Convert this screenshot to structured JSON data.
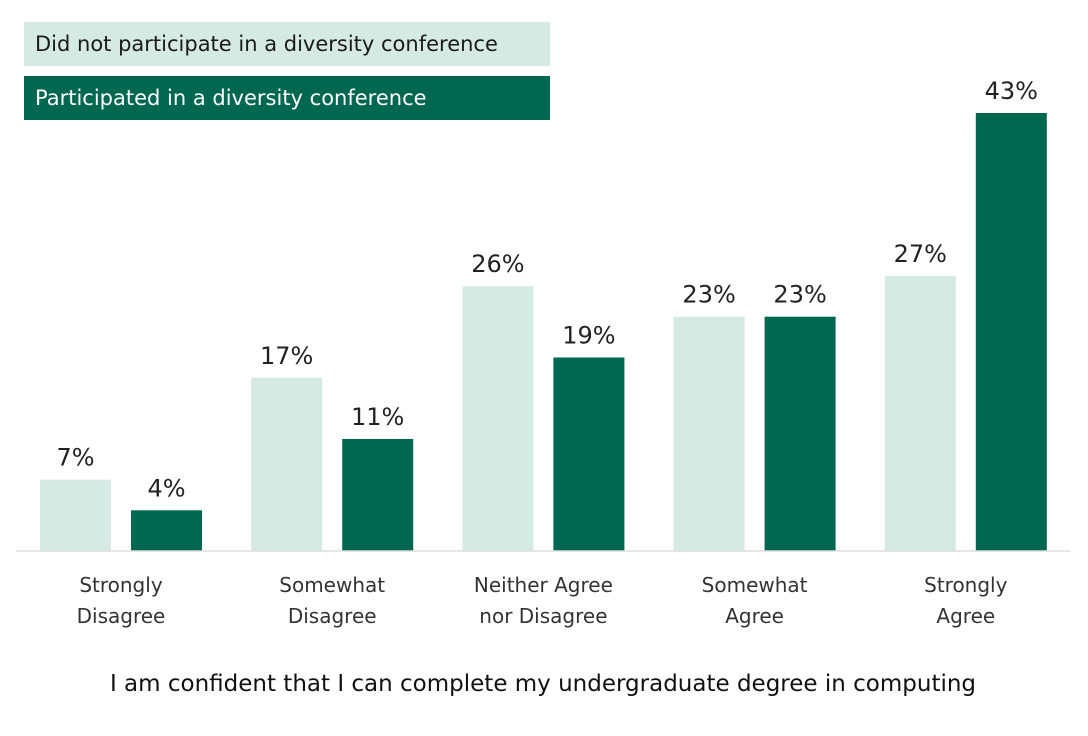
{
  "chart_data": {
    "type": "bar",
    "categories": [
      [
        "Strongly",
        "Disagree"
      ],
      [
        "Somewhat",
        "Disagree"
      ],
      [
        "Neither Agree",
        "nor Disagree"
      ],
      [
        "Somewhat",
        "Agree"
      ],
      [
        "Strongly",
        "Agree"
      ]
    ],
    "series": [
      {
        "name": "Did not participate in a diversity conference",
        "color": "#d5eae3",
        "values": [
          7,
          17,
          26,
          23,
          27
        ],
        "labels": [
          "7%",
          "17%",
          "26%",
          "23%",
          "27%"
        ]
      },
      {
        "name": "Participated in a diversity conference",
        "color": "#006750",
        "values": [
          4,
          11,
          19,
          23,
          43
        ],
        "labels": [
          "4%",
          "11%",
          "19%",
          "23%",
          "43%"
        ]
      }
    ],
    "xlabel": "I am confident that I can complete my undergraduate degree in computing",
    "ylabel": "",
    "ylim": [
      0,
      43
    ],
    "grid": false,
    "legend": "top-left"
  }
}
